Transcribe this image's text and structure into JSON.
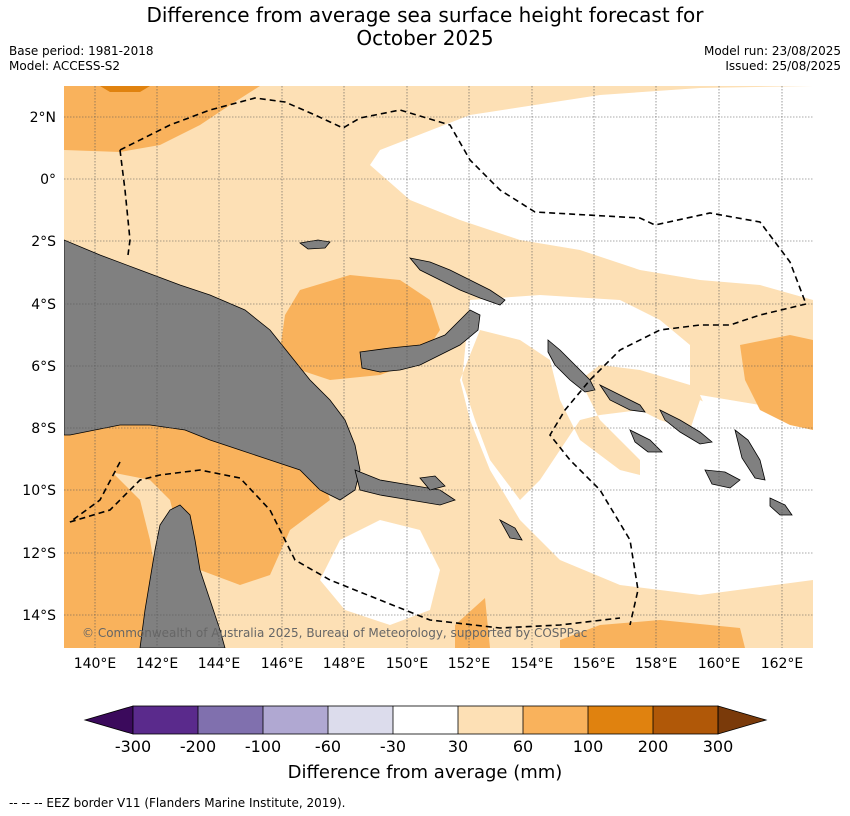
{
  "header": {
    "title_line1": "Difference from average sea surface height forecast for",
    "title_line2": "October 2025",
    "base_period": "Base period: 1981-2018",
    "model": "Model: ACCESS-S2",
    "model_run": "Model run: 23/08/2025",
    "issued": "Issued: 25/08/2025"
  },
  "map": {
    "lat_ticks": [
      "2°N",
      "0°",
      "2°S",
      "4°S",
      "6°S",
      "8°S",
      "10°S",
      "12°S",
      "14°S"
    ],
    "lon_ticks": [
      "140°E",
      "142°E",
      "144°E",
      "146°E",
      "148°E",
      "150°E",
      "152°E",
      "154°E",
      "156°E",
      "158°E",
      "160°E",
      "162°E"
    ],
    "copyright": "© Commonwealth of Australia 2025, Bureau of Meteorology, supported by COSPPac",
    "colors": {
      "land": "#808080",
      "light_orange": "#fde0b5",
      "mid_orange": "#f9b25c",
      "dark_orange": "#e0820f",
      "ocean_neutral": "#ffffff"
    }
  },
  "colorbar": {
    "title": "Difference from average (mm)",
    "labels": [
      "-300",
      "-200",
      "-100",
      "-60",
      "-30",
      "30",
      "60",
      "100",
      "200",
      "300"
    ],
    "colors": [
      "#3b0a5c",
      "#5a2a8c",
      "#8070ae",
      "#b0a8d2",
      "#dcdcec",
      "#ffffff",
      "#fde0b5",
      "#f9b25c",
      "#e0820f",
      "#b05808",
      "#7a3a0a"
    ]
  },
  "footer": {
    "legend": "--  --  -- EEZ border V11 (Flanders Marine Institute, 2019)."
  }
}
